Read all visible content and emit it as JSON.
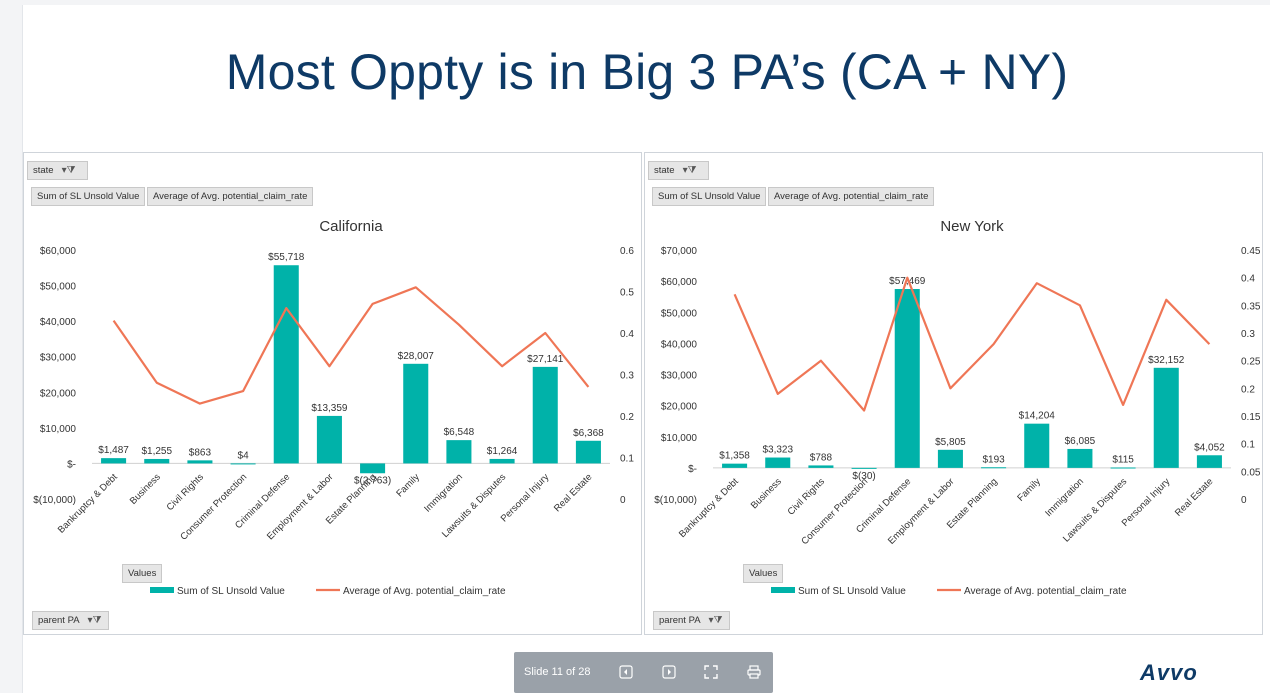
{
  "slide": {
    "title": "Most Oppty is in Big 3 PA’s (CA + NY)",
    "brand": "Avvo",
    "slide_counter": "Slide 11 of 28"
  },
  "panels": [
    {
      "filter_label": "state",
      "value_pills": [
        "Sum of SL Unsold Value",
        "Average of Avg. potential_claim_rate"
      ],
      "values_pill": "Values",
      "row_filter_label": "parent PA",
      "legend": [
        "Sum of SL Unsold Value",
        "Average of Avg. potential_claim_rate"
      ]
    },
    {
      "filter_label": "state",
      "value_pills": [
        "Sum of SL Unsold Value",
        "Average of Avg. potential_claim_rate"
      ],
      "values_pill": "Values",
      "row_filter_label": "parent PA",
      "legend": [
        "Sum of SL Unsold Value",
        "Average of Avg. potential_claim_rate"
      ]
    }
  ],
  "colors": {
    "bar": "#00b2a9",
    "line": "#ef7656",
    "title": "#0e3a66"
  },
  "chart_data": [
    {
      "type": "bar",
      "title": "California",
      "categories": [
        "Bankruptcy & Debt",
        "Business",
        "Civil Rights",
        "Consumer Protection",
        "Criminal Defense",
        "Employment & Labor",
        "Estate Planning",
        "Family",
        "Immigration",
        "Lawsuits & Disputes",
        "Personal Injury",
        "Real Estate"
      ],
      "series": [
        {
          "name": "Sum of SL Unsold Value",
          "type": "bar",
          "axis": "left",
          "values": [
            1487,
            1255,
            863,
            4,
            55718,
            13359,
            -2763,
            28007,
            6548,
            1264,
            27141,
            6368
          ],
          "labels": [
            "$1,487",
            "$1,255",
            "$863",
            "$4",
            "$55,718",
            "$13,359",
            "$(2,763)",
            "$28,007",
            "$6,548",
            "$1,264",
            "$27,141",
            "$6,368"
          ]
        },
        {
          "name": "Average of Avg. potential_claim_rate",
          "type": "line",
          "axis": "right",
          "values": [
            0.43,
            0.28,
            0.23,
            0.26,
            0.46,
            0.32,
            0.47,
            0.51,
            0.42,
            0.32,
            0.4,
            0.27
          ]
        }
      ],
      "ylim": [
        -10000,
        60000
      ],
      "yticks": [
        60000,
        50000,
        40000,
        30000,
        20000,
        10000,
        0,
        -10000
      ],
      "ytick_labels": [
        "$60,000",
        "$50,000",
        "$40,000",
        "$30,000",
        "$20,000",
        "$10,000",
        "$-",
        "$(10,000)"
      ],
      "y2lim": [
        0,
        0.6
      ],
      "y2ticks": [
        0.6,
        0.5,
        0.4,
        0.3,
        0.2,
        0.1,
        0
      ],
      "y2tick_labels": [
        "0.6",
        "0.5",
        "0.4",
        "0.3",
        "0.2",
        "0.1",
        "0"
      ],
      "grid": false,
      "legend_position": "bottom"
    },
    {
      "type": "bar",
      "title": "New York",
      "categories": [
        "Bankruptcy & Debt",
        "Business",
        "Civil Rights",
        "Consumer Protection",
        "Criminal Defense",
        "Employment & Labor",
        "Estate Planning",
        "Family",
        "Immigration",
        "Lawsuits & Disputes",
        "Personal Injury",
        "Real Estate"
      ],
      "series": [
        {
          "name": "Sum of SL Unsold Value",
          "type": "bar",
          "axis": "left",
          "values": [
            1358,
            3323,
            788,
            -30,
            57469,
            5805,
            193,
            14204,
            6085,
            115,
            32152,
            4052
          ],
          "labels": [
            "$1,358",
            "$3,323",
            "$788",
            "$(30)",
            "$57,469",
            "$5,805",
            "$193",
            "$14,204",
            "$6,085",
            "$115",
            "$32,152",
            "$4,052"
          ]
        },
        {
          "name": "Average of Avg. potential_claim_rate",
          "type": "line",
          "axis": "right",
          "values": [
            0.37,
            0.19,
            0.25,
            0.16,
            0.4,
            0.2,
            0.28,
            0.39,
            0.35,
            0.17,
            0.36,
            0.28
          ]
        }
      ],
      "ylim": [
        -10000,
        70000
      ],
      "yticks": [
        70000,
        60000,
        50000,
        40000,
        30000,
        20000,
        10000,
        0,
        -10000
      ],
      "ytick_labels": [
        "$70,000",
        "$60,000",
        "$50,000",
        "$40,000",
        "$30,000",
        "$20,000",
        "$10,000",
        "$-",
        "$(10,000)"
      ],
      "y2lim": [
        0,
        0.45
      ],
      "y2ticks": [
        0.45,
        0.4,
        0.35,
        0.3,
        0.25,
        0.2,
        0.15,
        0.1,
        0.05,
        0
      ],
      "y2tick_labels": [
        "0.45",
        "0.4",
        "0.35",
        "0.3",
        "0.25",
        "0.2",
        "0.15",
        "0.1",
        "0.05",
        "0"
      ],
      "grid": false,
      "legend_position": "bottom"
    }
  ]
}
